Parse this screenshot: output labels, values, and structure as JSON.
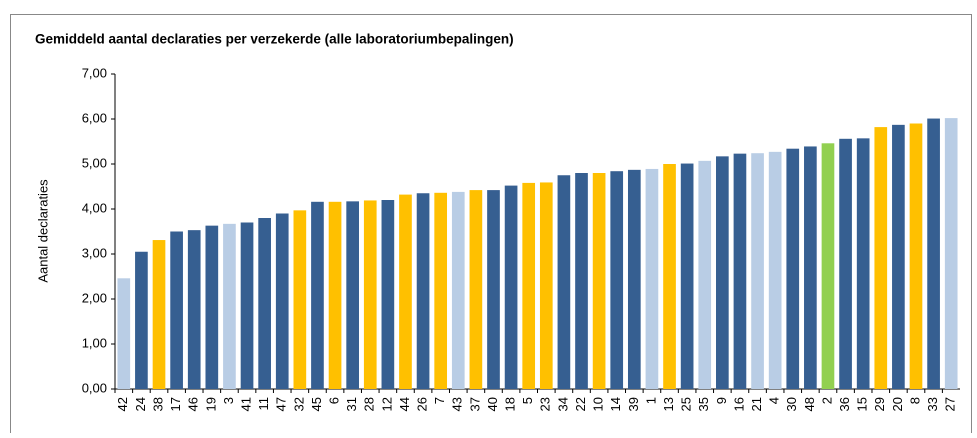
{
  "chart_data": {
    "type": "bar",
    "title": "Gemiddeld aantal declaraties per verzekerde (alle laboratoriumbepalingen)",
    "y_label": "Aantal declaraties",
    "categories": [
      "42",
      "24",
      "38",
      "17",
      "46",
      "19",
      "3",
      "41",
      "11",
      "47",
      "32",
      "45",
      "6",
      "31",
      "28",
      "12",
      "44",
      "26",
      "7",
      "43",
      "37",
      "40",
      "18",
      "5",
      "23",
      "34",
      "22",
      "10",
      "14",
      "39",
      "1",
      "13",
      "25",
      "35",
      "9",
      "16",
      "21",
      "4",
      "30",
      "48",
      "2",
      "36",
      "15",
      "29",
      "20",
      "8",
      "33",
      "27"
    ],
    "values": [
      2.46,
      3.05,
      3.31,
      3.5,
      3.53,
      3.63,
      3.67,
      3.7,
      3.8,
      3.9,
      3.97,
      4.16,
      4.16,
      4.17,
      4.19,
      4.2,
      4.32,
      4.35,
      4.36,
      4.38,
      4.42,
      4.42,
      4.52,
      4.58,
      4.59,
      4.75,
      4.8,
      4.8,
      4.84,
      4.87,
      4.89,
      5.0,
      5.01,
      5.07,
      5.17,
      5.23,
      5.24,
      5.27,
      5.34,
      5.39,
      5.46,
      5.56,
      5.57,
      5.82,
      5.87,
      5.9,
      6.01,
      6.02
    ],
    "colors": [
      "#b9cde5",
      "#365f91",
      "#ffc000",
      "#365f91",
      "#365f91",
      "#365f91",
      "#b9cde5",
      "#365f91",
      "#365f91",
      "#365f91",
      "#ffc000",
      "#365f91",
      "#ffc000",
      "#365f91",
      "#ffc000",
      "#365f91",
      "#ffc000",
      "#365f91",
      "#ffc000",
      "#b9cde5",
      "#ffc000",
      "#365f91",
      "#365f91",
      "#ffc000",
      "#ffc000",
      "#365f91",
      "#365f91",
      "#ffc000",
      "#365f91",
      "#365f91",
      "#b9cde5",
      "#ffc000",
      "#365f91",
      "#b9cde5",
      "#365f91",
      "#365f91",
      "#b9cde5",
      "#b9cde5",
      "#365f91",
      "#365f91",
      "#92d050",
      "#365f91",
      "#365f91",
      "#ffc000",
      "#365f91",
      "#ffc000",
      "#365f91",
      "#b9cde5"
    ],
    "ylim": [
      0,
      7
    ],
    "yticks": [
      {
        "value": 0,
        "label": "0,00"
      },
      {
        "value": 1,
        "label": "1,00"
      },
      {
        "value": 2,
        "label": "2,00"
      },
      {
        "value": 3,
        "label": "3,00"
      },
      {
        "value": 4,
        "label": "4,00"
      },
      {
        "value": 5,
        "label": "5,00"
      },
      {
        "value": 6,
        "label": "6,00"
      },
      {
        "value": 7,
        "label": "7,00"
      }
    ],
    "grid": false
  }
}
